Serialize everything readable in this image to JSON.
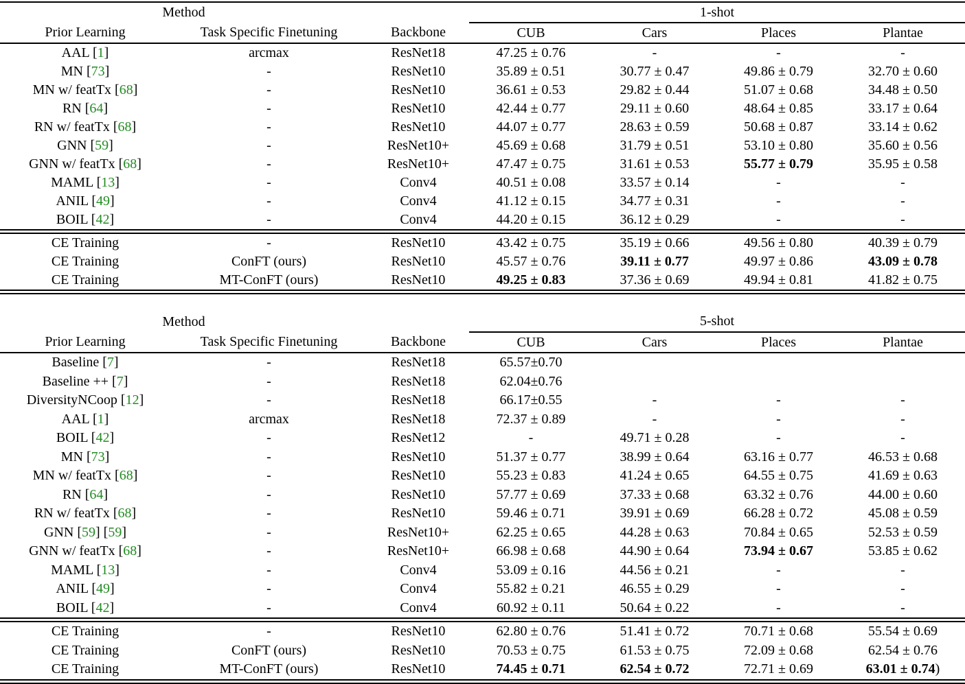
{
  "page": {
    "background_color": "#ffffff",
    "text_color": "#000000",
    "citation_color": "#228B22"
  },
  "tables": [
    {
      "group_header": {
        "method_label": "Method",
        "shot_label": "1-shot"
      },
      "columns": [
        "Prior Learning",
        "Task Specific Finetuning",
        "Backbone",
        "CUB",
        "Cars",
        "Places",
        "Plantae"
      ],
      "sections": [
        {
          "rows": [
            [
              "AAL [1]",
              "arcmax",
              "ResNet18",
              "47.25 ± 0.76",
              "-",
              "-",
              "-"
            ],
            [
              "MN [73]",
              "-",
              "ResNet10",
              "35.89 ± 0.51",
              "30.77 ± 0.47",
              "49.86 ± 0.79",
              "32.70 ± 0.60"
            ],
            [
              "MN w/ featTx [68]",
              "-",
              "ResNet10",
              "36.61 ± 0.53",
              "29.82 ± 0.44",
              "51.07 ± 0.68",
              "34.48 ± 0.50"
            ],
            [
              "RN [64]",
              "-",
              "ResNet10",
              "42.44 ± 0.77",
              "29.11 ± 0.60",
              "48.64 ± 0.85",
              "33.17 ± 0.64"
            ],
            [
              "RN w/ featTx [68]",
              "-",
              "ResNet10",
              "44.07 ± 0.77",
              "28.63 ± 0.59",
              "50.68 ± 0.87",
              "33.14 ± 0.62"
            ],
            [
              "GNN [59]",
              "-",
              "ResNet10+",
              "45.69 ± 0.68",
              "31.79 ± 0.51",
              "53.10 ± 0.80",
              "35.60 ± 0.56"
            ],
            [
              "GNN w/ featTx [68]",
              "-",
              "ResNet10+",
              "47.47 ± 0.75",
              "31.61 ± 0.53",
              "**55.77 ± 0.79**",
              "35.95 ± 0.58"
            ],
            [
              "MAML [13]",
              "-",
              "Conv4",
              "40.51 ± 0.08",
              "33.57 ± 0.14",
              "-",
              "-"
            ],
            [
              "ANIL [49]",
              "-",
              "Conv4",
              "41.12 ± 0.15",
              "34.77 ± 0.31",
              "-",
              "-"
            ],
            [
              "BOIL [42]",
              "-",
              "Conv4",
              "44.20 ± 0.15",
              "36.12 ± 0.29",
              "-",
              "-"
            ]
          ]
        },
        {
          "rows": [
            [
              "CE Training",
              "-",
              "ResNet10",
              "43.42 ± 0.75",
              "35.19 ± 0.66",
              "49.56 ± 0.80",
              "40.39 ± 0.79"
            ],
            [
              "CE Training",
              "ConFT (ours)",
              "ResNet10",
              "45.57 ± 0.76",
              "**39.11 ± 0.77**",
              "49.97 ± 0.86",
              "**43.09 ± 0.78**"
            ],
            [
              "CE Training",
              "MT-ConFT (ours)",
              "ResNet10",
              "**49.25 ± 0.83**",
              "37.36 ± 0.69",
              "49.94 ± 0.81",
              "41.82 ± 0.75"
            ]
          ]
        }
      ]
    },
    {
      "group_header": {
        "method_label": "Method",
        "shot_label": "5-shot"
      },
      "columns": [
        "Prior Learning",
        "Task Specific Finetuning",
        "Backbone",
        "CUB",
        "Cars",
        "Places",
        "Plantae"
      ],
      "sections": [
        {
          "rows": [
            [
              "Baseline [7]",
              "-",
              "ResNet18",
              "65.57±0.70",
              "",
              "",
              ""
            ],
            [
              "Baseline ++ [7]",
              "-",
              "ResNet18",
              "62.04±0.76",
              "",
              "",
              ""
            ],
            [
              "DiversityNCoop [12]",
              "-",
              "ResNet18",
              "66.17±0.55",
              "-",
              "-",
              "-"
            ],
            [
              "AAL [1]",
              "arcmax",
              "ResNet18",
              "72.37 ± 0.89",
              "-",
              "-",
              "-"
            ],
            [
              "BOIL [42]",
              "-",
              "ResNet12",
              "-",
              "49.71 ± 0.28",
              "-",
              "-"
            ],
            [
              "MN [73]",
              "-",
              "ResNet10",
              "51.37 ± 0.77",
              "38.99 ± 0.64",
              "63.16 ± 0.77",
              "46.53 ± 0.68"
            ],
            [
              "MN w/ featTx [68]",
              "-",
              "ResNet10",
              "55.23 ± 0.83",
              "41.24 ± 0.65",
              "64.55 ± 0.75",
              "41.69 ± 0.63"
            ],
            [
              "RN [64]",
              "-",
              "ResNet10",
              "57.77 ± 0.69",
              "37.33 ± 0.68",
              "63.32 ± 0.76",
              "44.00 ± 0.60"
            ],
            [
              "RN w/ featTx [68]",
              "-",
              "ResNet10",
              "59.46 ± 0.71",
              "39.91 ± 0.69",
              "66.28 ± 0.72",
              "45.08 ± 0.59"
            ],
            [
              "GNN [59] [59]",
              "-",
              "ResNet10+",
              "62.25 ± 0.65",
              "44.28 ± 0.63",
              "70.84 ± 0.65",
              "52.53 ± 0.59"
            ],
            [
              "GNN w/ featTx [68]",
              "-",
              "ResNet10+",
              "66.98 ± 0.68",
              "44.90 ± 0.64",
              "**73.94 ± 0.67**",
              "53.85 ± 0.62"
            ],
            [
              "MAML [13]",
              "-",
              "Conv4",
              "53.09 ± 0.16",
              "44.56 ± 0.21",
              "-",
              "-"
            ],
            [
              "ANIL [49]",
              "-",
              "Conv4",
              "55.82 ± 0.21",
              "46.55 ± 0.29",
              "-",
              "-"
            ],
            [
              "BOIL [42]",
              "-",
              "Conv4",
              "60.92 ± 0.11",
              "50.64 ± 0.22",
              "-",
              "-"
            ]
          ]
        },
        {
          "rows": [
            [
              "CE Training",
              "-",
              "ResNet10",
              "62.80 ± 0.76",
              "51.41 ± 0.72",
              "70.71 ± 0.68",
              "55.54 ± 0.69"
            ],
            [
              "CE Training",
              "ConFT (ours)",
              "ResNet10",
              "70.53 ± 0.75",
              "61.53 ± 0.75",
              "72.09 ± 0.68",
              "62.54 ± 0.76"
            ],
            [
              "CE Training",
              "MT-ConFT (ours)",
              "ResNet10",
              "**74.45 ± 0.71**",
              "**62.54 ± 0.72**",
              "72.71 ± 0.69",
              "**63.01 ± 0.74**)"
            ]
          ]
        }
      ]
    }
  ]
}
